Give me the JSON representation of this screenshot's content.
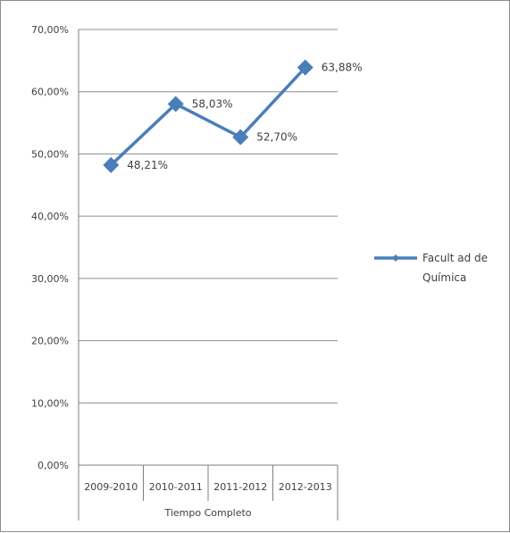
{
  "chart_data": {
    "type": "line",
    "categories": [
      "2009-2010",
      "2010-2011",
      "2011-2012",
      "2012-2013"
    ],
    "category_group": "Tiempo Completo",
    "series": [
      {
        "name": "Facultad de Química",
        "values": [
          48.21,
          58.03,
          52.7,
          63.88
        ],
        "labels": [
          "48,21%",
          "58,03%",
          "52,70%",
          "63,88%"
        ],
        "color": "#4a7ebb",
        "marker": "diamond"
      }
    ],
    "y_ticks": [
      "0,00%",
      "10,00%",
      "20,00%",
      "30,00%",
      "40,00%",
      "50,00%",
      "60,00%",
      "70,00%"
    ],
    "ylim": [
      0,
      70
    ],
    "grid": true,
    "legend_position": "right",
    "legend_lines": [
      "Facult ad de",
      "Química"
    ]
  }
}
